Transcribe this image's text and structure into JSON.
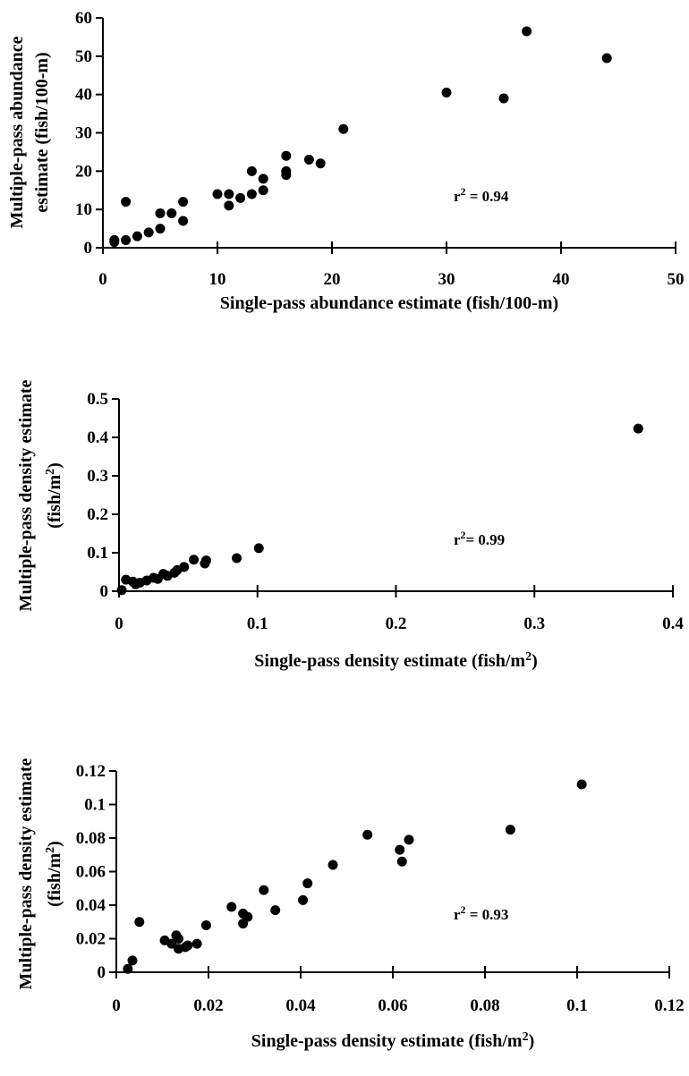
{
  "chart_data": [
    {
      "type": "scatter",
      "xlabel": "Single-pass abundance estimate (fish/100-m)",
      "ylabel_lines": [
        "Multiple-pass abundance",
        "estimate (fish/100-m)"
      ],
      "annotation": "r² = 0.94",
      "xlim": [
        0,
        50
      ],
      "ylim": [
        0,
        60
      ],
      "xticks": [
        0,
        10,
        20,
        30,
        40,
        50
      ],
      "yticks": [
        0,
        10,
        20,
        30,
        40,
        50,
        60
      ],
      "tick_labels_x": [
        "0",
        "10",
        "20",
        "30",
        "40",
        "50"
      ],
      "tick_labels_y": [
        "0",
        "10",
        "20",
        "30",
        "40",
        "50",
        "60"
      ],
      "grid": false,
      "points": [
        [
          1,
          1.5
        ],
        [
          1,
          2
        ],
        [
          2,
          2
        ],
        [
          2,
          12
        ],
        [
          3,
          3
        ],
        [
          4,
          4
        ],
        [
          5,
          5
        ],
        [
          5,
          9
        ],
        [
          6,
          9
        ],
        [
          7,
          7
        ],
        [
          7,
          12
        ],
        [
          10,
          14
        ],
        [
          11,
          11
        ],
        [
          11,
          14
        ],
        [
          12,
          13
        ],
        [
          13,
          14
        ],
        [
          13,
          20
        ],
        [
          14,
          15
        ],
        [
          14,
          18
        ],
        [
          16,
          19
        ],
        [
          16,
          20
        ],
        [
          16,
          24
        ],
        [
          18,
          23
        ],
        [
          19,
          22
        ],
        [
          21,
          31
        ],
        [
          30,
          40.5
        ],
        [
          35,
          39
        ],
        [
          37,
          56.5
        ],
        [
          44,
          49.5
        ]
      ]
    },
    {
      "type": "scatter",
      "xlabel": "Single-pass density estimate (fish/m²)",
      "ylabel_lines": [
        "Multiple-pass density estimate",
        "(fish/m²)"
      ],
      "annotation": "r²= 0.99",
      "xlim": [
        0,
        0.4
      ],
      "ylim": [
        0,
        0.5
      ],
      "xticks": [
        0,
        0.1,
        0.2,
        0.3,
        0.4
      ],
      "yticks": [
        0,
        0.1,
        0.2,
        0.3,
        0.4,
        0.5
      ],
      "tick_labels_x": [
        "0",
        "0.1",
        "0.2",
        "0.3",
        "0.4"
      ],
      "tick_labels_y": [
        "0",
        "0.1",
        "0.2",
        "0.3",
        "0.4",
        "0.5"
      ],
      "grid": false,
      "points": [
        [
          0.002,
          0.003
        ],
        [
          0.005,
          0.03
        ],
        [
          0.01,
          0.025
        ],
        [
          0.012,
          0.018
        ],
        [
          0.015,
          0.022
        ],
        [
          0.02,
          0.028
        ],
        [
          0.025,
          0.035
        ],
        [
          0.028,
          0.032
        ],
        [
          0.032,
          0.045
        ],
        [
          0.035,
          0.04
        ],
        [
          0.04,
          0.048
        ],
        [
          0.042,
          0.055
        ],
        [
          0.047,
          0.063
        ],
        [
          0.054,
          0.082
        ],
        [
          0.062,
          0.072
        ],
        [
          0.063,
          0.08
        ],
        [
          0.085,
          0.086
        ],
        [
          0.101,
          0.112
        ],
        [
          0.375,
          0.423
        ]
      ]
    },
    {
      "type": "scatter",
      "xlabel": "Single-pass density estimate (fish/m²)",
      "ylabel_lines": [
        "Multiple-pass density estimate",
        "(fish/m²)"
      ],
      "annotation": "r² = 0.93",
      "xlim": [
        0,
        0.12
      ],
      "ylim": [
        0,
        0.12
      ],
      "xticks": [
        0,
        0.02,
        0.04,
        0.06,
        0.08,
        0.1,
        0.12
      ],
      "yticks": [
        0,
        0.02,
        0.04,
        0.06,
        0.08,
        0.1,
        0.12
      ],
      "tick_labels_x": [
        "0",
        "0.02",
        "0.04",
        "0.06",
        "0.08",
        "0.1",
        "0.12"
      ],
      "tick_labels_y": [
        "0",
        "0.02",
        "0.04",
        "0.06",
        "0.08",
        "0.1",
        "0.12"
      ],
      "grid": false,
      "points": [
        [
          0.0025,
          0.002
        ],
        [
          0.0035,
          0.007
        ],
        [
          0.005,
          0.03
        ],
        [
          0.0105,
          0.019
        ],
        [
          0.012,
          0.017
        ],
        [
          0.013,
          0.022
        ],
        [
          0.0135,
          0.02
        ],
        [
          0.0135,
          0.014
        ],
        [
          0.015,
          0.015
        ],
        [
          0.0155,
          0.016
        ],
        [
          0.0175,
          0.017
        ],
        [
          0.0195,
          0.028
        ],
        [
          0.025,
          0.039
        ],
        [
          0.0275,
          0.035
        ],
        [
          0.0275,
          0.029
        ],
        [
          0.0285,
          0.033
        ],
        [
          0.032,
          0.049
        ],
        [
          0.0345,
          0.037
        ],
        [
          0.0405,
          0.043
        ],
        [
          0.0415,
          0.053
        ],
        [
          0.047,
          0.064
        ],
        [
          0.0545,
          0.082
        ],
        [
          0.0615,
          0.073
        ],
        [
          0.062,
          0.066
        ],
        [
          0.0635,
          0.079
        ],
        [
          0.0855,
          0.085
        ],
        [
          0.101,
          0.112
        ]
      ]
    }
  ]
}
